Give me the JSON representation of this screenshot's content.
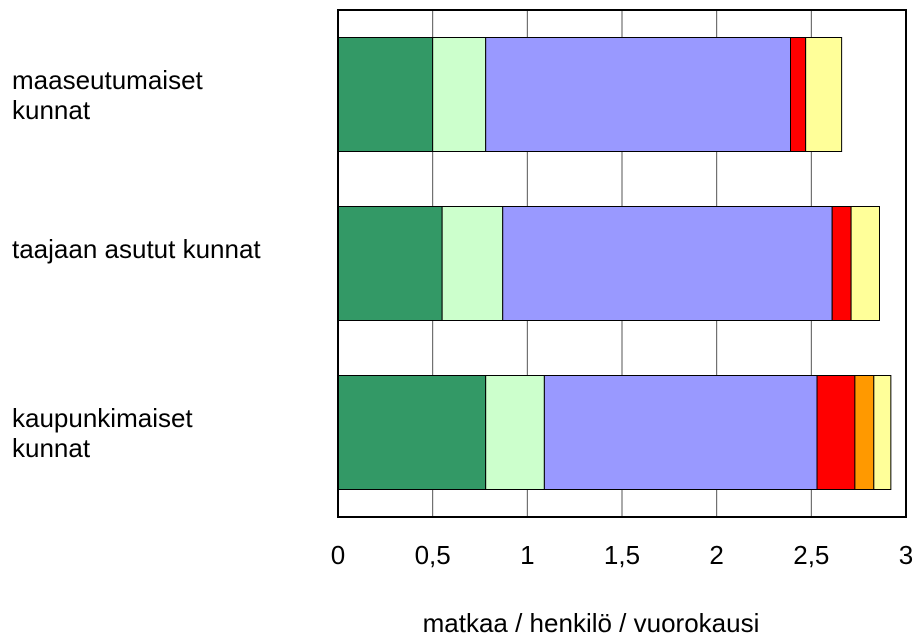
{
  "chart_data": {
    "type": "stacked_barh",
    "xlabel": "matkaa / henkilö / vuorokausi",
    "categories": [
      "maaseutumaiset kunnat",
      "taajaan asutut kunnat",
      "kaupunkimaiset kunnat"
    ],
    "series": [
      {
        "color": "#339966",
        "values": [
          0.5,
          0.55,
          0.78
        ]
      },
      {
        "color": "#ccffcc",
        "values": [
          0.28,
          0.32,
          0.31
        ]
      },
      {
        "color": "#9999ff",
        "values": [
          1.61,
          1.74,
          1.44
        ]
      },
      {
        "color": "#ff0000",
        "values": [
          0.08,
          0.1,
          0.2
        ]
      },
      {
        "color": "#ff9900",
        "values": [
          0,
          0,
          0.1
        ]
      },
      {
        "color": "#ffff99",
        "values": [
          0.19,
          0.15,
          0.09
        ]
      }
    ],
    "xlim": [
      0,
      3
    ],
    "xticks": [
      0,
      {
        "value": 0.5,
        "label": "0,5"
      },
      1,
      {
        "value": 1.5,
        "label": "1,5"
      },
      2,
      {
        "value": 2.5,
        "label": "2,5"
      },
      3
    ],
    "grid": true
  }
}
